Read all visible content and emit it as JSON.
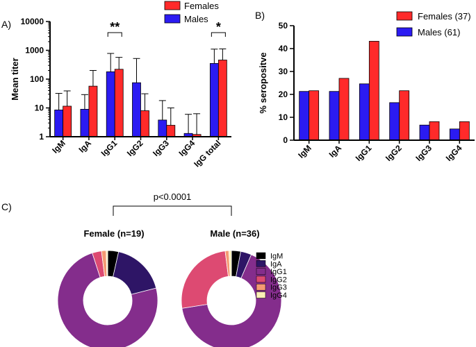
{
  "panels": {
    "a": "A)",
    "b": "B)",
    "c": "C)"
  },
  "colors": {
    "females": "#ff2a2a",
    "males": "#2b1bf2"
  },
  "chart_data": [
    {
      "id": "A",
      "type": "bar",
      "title": "",
      "ylabel": "Mean titer",
      "xlabel": "",
      "yscale": "log",
      "ylim": [
        1,
        10000
      ],
      "yticks": [
        1,
        10,
        100,
        1000,
        10000
      ],
      "ytick_labels": [
        "1",
        "10",
        "100",
        "1000",
        "10000"
      ],
      "categories": [
        "IgM",
        "IgA",
        "IgG1",
        "IgG2",
        "IgG3",
        "IgG4",
        "IgG total"
      ],
      "series": [
        {
          "name": "Males",
          "values": [
            8.5,
            9,
            180,
            75,
            3.8,
            1.3,
            350
          ],
          "error_upper": [
            32,
            29,
            780,
            520,
            18,
            6,
            1100
          ]
        },
        {
          "name": "Females",
          "values": [
            11.5,
            57,
            220,
            8,
            2.5,
            1.2,
            460
          ],
          "error_upper": [
            39,
            200,
            570,
            31,
            10,
            6.3,
            1120
          ]
        }
      ],
      "legend": [
        "Females",
        "Males"
      ],
      "legend_position": "top-right",
      "annotations": [
        {
          "text": "**",
          "between": [
            "IgG1"
          ]
        },
        {
          "text": "*",
          "between": [
            "IgG total"
          ]
        }
      ]
    },
    {
      "id": "B",
      "type": "bar",
      "title": "",
      "ylabel": "% seropositve",
      "xlabel": "",
      "ylim": [
        0,
        50
      ],
      "yticks": [
        0,
        10,
        20,
        30,
        40,
        50
      ],
      "categories": [
        "IgM",
        "IgA",
        "IgG1",
        "IgG2",
        "IgG3",
        "IgG4"
      ],
      "series": [
        {
          "name": "Males (61)",
          "values": [
            21.3,
            21.3,
            24.6,
            16.4,
            6.6,
            4.9
          ]
        },
        {
          "name": "Females (37)",
          "values": [
            21.6,
            27.0,
            43.2,
            21.6,
            8.1,
            8.1
          ]
        }
      ],
      "legend": [
        "Females (37)",
        "Males (61)"
      ],
      "legend_position": "top-right"
    },
    {
      "id": "C",
      "type": "pie",
      "donut": true,
      "comparison_label": "p<0.0001",
      "legend": [
        {
          "label": "IgM",
          "color": "#000000"
        },
        {
          "label": "IgA",
          "color": "#2e1566"
        },
        {
          "label": "IgG1",
          "color": "#842d8c"
        },
        {
          "label": "IgG2",
          "color": "#dd4a72"
        },
        {
          "label": "IgG3",
          "color": "#f59a73"
        },
        {
          "label": "IgG4",
          "color": "#fcf0b5"
        }
      ],
      "pies": [
        {
          "title": "Female (n=19)",
          "values": [
            3.5,
            17.5,
            74,
            3,
            1.5,
            0.5
          ]
        },
        {
          "title": "Male (n=36)",
          "values": [
            3,
            3.5,
            66,
            25.5,
            1.2,
            0.8
          ]
        }
      ]
    }
  ]
}
